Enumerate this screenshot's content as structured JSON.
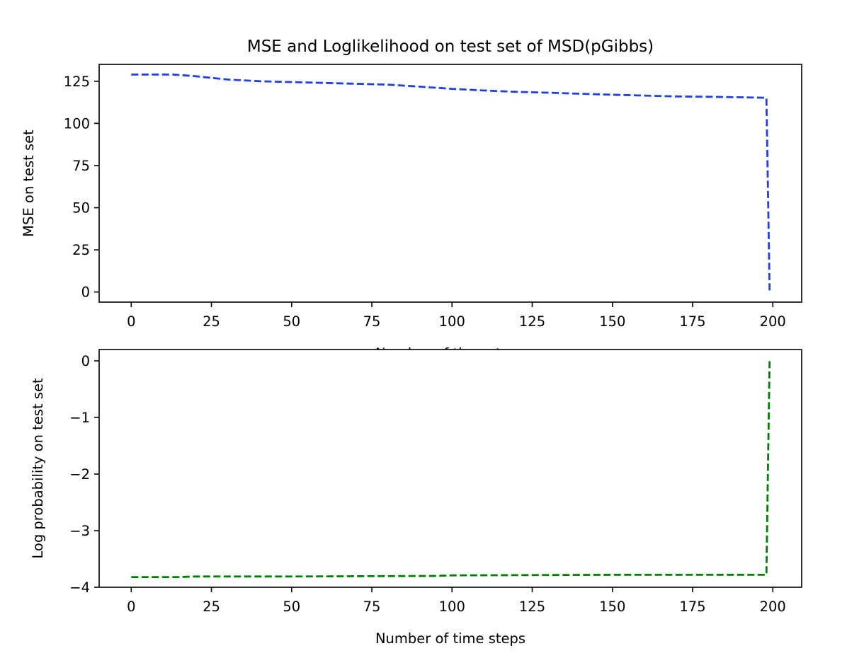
{
  "title": "MSE and Loglikelihood on test set of MSD(pGibbs)",
  "chart_data": [
    {
      "type": "line",
      "title": "MSE and Loglikelihood on test set of MSD(pGibbs)",
      "xlabel": "Number of time steps",
      "ylabel": "MSE on test set",
      "xlim": [
        -10,
        209
      ],
      "ylim": [
        -6,
        135
      ],
      "xticks": [
        0,
        25,
        50,
        75,
        100,
        125,
        150,
        175,
        200
      ],
      "yticks": [
        0,
        25,
        50,
        75,
        100,
        125
      ],
      "xtick_labels": [
        "0",
        "25",
        "50",
        "75",
        "100",
        "125",
        "150",
        "175",
        "200"
      ],
      "ytick_labels": [
        "0",
        "25",
        "50",
        "75",
        "100",
        "125"
      ],
      "grid": false,
      "series": [
        {
          "color": "#1f3fe8",
          "linestyle": "dashed",
          "x": [
            0,
            5,
            13,
            20,
            30,
            40,
            50,
            60,
            70,
            80,
            90,
            100,
            110,
            120,
            130,
            140,
            150,
            160,
            170,
            180,
            190,
            198,
            198.5,
            199
          ],
          "y": [
            129,
            129,
            129,
            128,
            126,
            125,
            124.5,
            124,
            123.5,
            123,
            121.8,
            120.5,
            119.5,
            118.7,
            118.2,
            117.6,
            117,
            116.5,
            116,
            115.8,
            115.5,
            115.2,
            60,
            1
          ]
        }
      ]
    },
    {
      "type": "line",
      "title": "",
      "xlabel": "Number of time steps",
      "ylabel": "Log probability on test set",
      "xlim": [
        -10,
        209
      ],
      "ylim": [
        -4,
        0.2
      ],
      "xticks": [
        0,
        25,
        50,
        75,
        100,
        125,
        150,
        175,
        200
      ],
      "yticks": [
        0,
        -1,
        -2,
        -3,
        -4
      ],
      "xtick_labels": [
        "0",
        "25",
        "50",
        "75",
        "100",
        "125",
        "150",
        "175",
        "200"
      ],
      "ytick_labels": [
        "0",
        "−1",
        "−2",
        "−3",
        "−4"
      ],
      "grid": false,
      "series": [
        {
          "color": "#008000",
          "linestyle": "dashed",
          "x": [
            0,
            15,
            20,
            50,
            95,
            100,
            150,
            198,
            198.5,
            199
          ],
          "y": [
            -3.82,
            -3.82,
            -3.81,
            -3.81,
            -3.8,
            -3.79,
            -3.78,
            -3.78,
            -1.9,
            0
          ]
        }
      ]
    }
  ]
}
